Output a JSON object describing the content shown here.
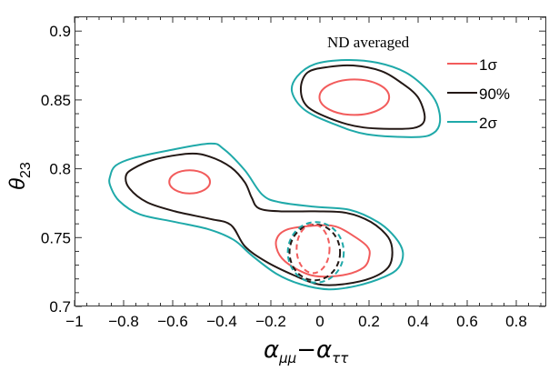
{
  "chart_data": {
    "type": "contour",
    "title": "ND averaged",
    "xlabel": "α_μμ−α_ττ",
    "xlabel_main": "α",
    "xlabel_sub1": "μμ",
    "xlabel_minus": "−",
    "xlabel_main2": "α",
    "xlabel_sub2": "ττ",
    "ylabel": "θ23",
    "ylabel_main": "θ",
    "ylabel_sub": "23",
    "xlim": [
      -1,
      0.92
    ],
    "ylim": [
      0.7,
      0.911
    ],
    "xticks": [
      -1,
      -0.8,
      -0.6,
      -0.4,
      -0.2,
      0,
      0.2,
      0.4,
      0.6,
      0.8
    ],
    "xtick_labels": [
      "−1",
      "−0.8",
      "−0.6",
      "−0.4",
      "−0.2",
      "0",
      "0.2",
      "0.4",
      "0.6",
      "0.8"
    ],
    "yticks": [
      0.7,
      0.75,
      0.8,
      0.85,
      0.9
    ],
    "ytick_labels": [
      "0.7",
      "0.75",
      "0.8",
      "0.85",
      "0.9"
    ],
    "grid": false,
    "legend_position": "top-right",
    "legend": [
      {
        "label": "1σ",
        "color": "#f25c5c"
      },
      {
        "label": "90%",
        "color": "#231815"
      },
      {
        "label": "2σ",
        "color": "#1fa9a9"
      }
    ],
    "colors": {
      "one_sigma": "#f25c5c",
      "ninety": "#231815",
      "two_sigma": "#1fa9a9"
    },
    "contours": [
      {
        "name": "2sigma-upper",
        "level": "2σ",
        "style": "solid",
        "points": [
          [
            -0.114,
            0.856
          ],
          [
            -0.093,
            0.867
          ],
          [
            -0.021,
            0.876
          ],
          [
            0.107,
            0.879
          ],
          [
            0.235,
            0.877
          ],
          [
            0.349,
            0.87
          ],
          [
            0.434,
            0.858
          ],
          [
            0.477,
            0.847
          ],
          [
            0.489,
            0.834
          ],
          [
            0.463,
            0.826
          ],
          [
            0.392,
            0.823
          ],
          [
            0.192,
            0.825
          ],
          [
            0.05,
            0.833
          ],
          [
            -0.064,
            0.843
          ]
        ]
      },
      {
        "name": "90-upper",
        "level": "90%",
        "style": "solid",
        "points": [
          [
            -0.078,
            0.858
          ],
          [
            -0.05,
            0.87
          ],
          [
            0.036,
            0.874
          ],
          [
            0.135,
            0.875
          ],
          [
            0.249,
            0.871
          ],
          [
            0.335,
            0.862
          ],
          [
            0.399,
            0.852
          ],
          [
            0.427,
            0.838
          ],
          [
            0.406,
            0.831
          ],
          [
            0.335,
            0.829
          ],
          [
            0.178,
            0.83
          ],
          [
            0.064,
            0.835
          ],
          [
            -0.05,
            0.845
          ]
        ]
      },
      {
        "name": "2sigma-lower",
        "level": "2σ",
        "style": "solid",
        "points": [
          [
            -0.855,
            0.7945
          ],
          [
            -0.833,
            0.8022
          ],
          [
            -0.762,
            0.8077
          ],
          [
            -0.62,
            0.8132
          ],
          [
            -0.449,
            0.8183
          ],
          [
            -0.392,
            0.8143
          ],
          [
            -0.306,
            0.7989
          ],
          [
            -0.235,
            0.7812
          ],
          [
            -0.164,
            0.7757
          ],
          [
            -0.021,
            0.7724
          ],
          [
            0.121,
            0.7702
          ],
          [
            0.235,
            0.7614
          ],
          [
            0.306,
            0.7503
          ],
          [
            0.338,
            0.7393
          ],
          [
            0.321,
            0.7283
          ],
          [
            0.264,
            0.7216
          ],
          [
            0.15,
            0.715
          ],
          [
            0.036,
            0.7124
          ],
          [
            -0.078,
            0.7161
          ],
          [
            -0.178,
            0.7238
          ],
          [
            -0.278,
            0.7371
          ],
          [
            -0.349,
            0.7481
          ],
          [
            -0.449,
            0.7558
          ],
          [
            -0.591,
            0.7614
          ],
          [
            -0.734,
            0.7669
          ],
          [
            -0.819,
            0.7768
          ],
          [
            -0.855,
            0.7879
          ]
        ]
      },
      {
        "name": "90-lower",
        "level": "90%",
        "style": "solid",
        "points": [
          [
            -0.791,
            0.7945
          ],
          [
            -0.762,
            0.8
          ],
          [
            -0.677,
            0.8066
          ],
          [
            -0.534,
            0.811
          ],
          [
            -0.449,
            0.8088
          ],
          [
            -0.363,
            0.8011
          ],
          [
            -0.306,
            0.7901
          ],
          [
            -0.278,
            0.779
          ],
          [
            -0.249,
            0.7713
          ],
          [
            -0.164,
            0.7691
          ],
          [
            -0.021,
            0.7691
          ],
          [
            0.107,
            0.768
          ],
          [
            0.207,
            0.7614
          ],
          [
            0.278,
            0.7503
          ],
          [
            0.295,
            0.7393
          ],
          [
            0.278,
            0.7283
          ],
          [
            0.207,
            0.7205
          ],
          [
            0.093,
            0.7161
          ],
          [
            -0.007,
            0.7161
          ],
          [
            -0.107,
            0.7227
          ],
          [
            -0.221,
            0.7327
          ],
          [
            -0.306,
            0.7437
          ],
          [
            -0.363,
            0.7592
          ],
          [
            -0.449,
            0.7636
          ],
          [
            -0.591,
            0.7691
          ],
          [
            -0.705,
            0.7757
          ],
          [
            -0.776,
            0.7857
          ]
        ]
      },
      {
        "name": "1sigma-lower",
        "level": "1σ",
        "style": "solid",
        "points": [
          [
            -0.178,
            0.7481
          ],
          [
            -0.135,
            0.7558
          ],
          [
            -0.021,
            0.7587
          ],
          [
            0.064,
            0.7581
          ],
          [
            0.135,
            0.7514
          ],
          [
            0.192,
            0.7437
          ],
          [
            0.202,
            0.7371
          ],
          [
            0.178,
            0.7283
          ],
          [
            0.093,
            0.7227
          ],
          [
            -0.021,
            0.7221
          ],
          [
            -0.107,
            0.7283
          ],
          [
            -0.164,
            0.7371
          ]
        ]
      }
    ],
    "ellipses": [
      {
        "name": "1sigma-upper",
        "level": "1σ",
        "style": "solid",
        "center": [
          0.14,
          0.852
        ],
        "rx": 0.142,
        "ry": 0.0129
      },
      {
        "name": "1sigma-left",
        "level": "1σ",
        "style": "solid",
        "center": [
          -0.531,
          0.7905
        ],
        "rx": 0.083,
        "ry": 0.0084
      },
      {
        "name": "2sigma-dashed",
        "level": "2σ",
        "style": "dashed",
        "center": [
          -0.017,
          0.7393
        ],
        "rx": 0.114,
        "ry": 0.022
      },
      {
        "name": "90-dashed",
        "level": "90%",
        "style": "dashed",
        "center": [
          -0.021,
          0.7393
        ],
        "rx": 0.103,
        "ry": 0.0203
      },
      {
        "name": "1sigma-dashed",
        "level": "1σ",
        "style": "dashed",
        "center": [
          -0.028,
          0.7419
        ],
        "rx": 0.067,
        "ry": 0.0177
      }
    ]
  }
}
